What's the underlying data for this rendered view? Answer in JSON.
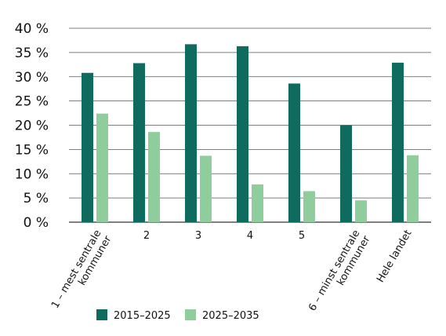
{
  "chart_data": {
    "type": "bar",
    "categories": [
      [
        "1 – mest sentrale",
        "kommuner"
      ],
      [
        "2"
      ],
      [
        "3"
      ],
      [
        "4"
      ],
      [
        "5"
      ],
      [
        "6 – minst sentrale",
        "kommuner"
      ],
      [
        "Hele landet"
      ]
    ],
    "series": [
      {
        "name": "2015–2025",
        "values": [
          30.8,
          32.8,
          36.7,
          36.3,
          28.6,
          20.0,
          32.9
        ],
        "color": "#0f6b5e"
      },
      {
        "name": "2025–2035",
        "values": [
          22.4,
          18.6,
          13.7,
          7.8,
          6.4,
          4.5,
          13.8
        ],
        "color": "#8fcd9c"
      }
    ],
    "yticks": [
      "0 %",
      "5 %",
      "10 %",
      "15 %",
      "20 %",
      "25 %",
      "30 %",
      "35 %",
      "40 %"
    ],
    "ytick_values": [
      0,
      5,
      10,
      15,
      20,
      25,
      30,
      35,
      40
    ],
    "ylim": [
      0,
      40
    ],
    "grid": true,
    "legend_position": "bottom"
  }
}
